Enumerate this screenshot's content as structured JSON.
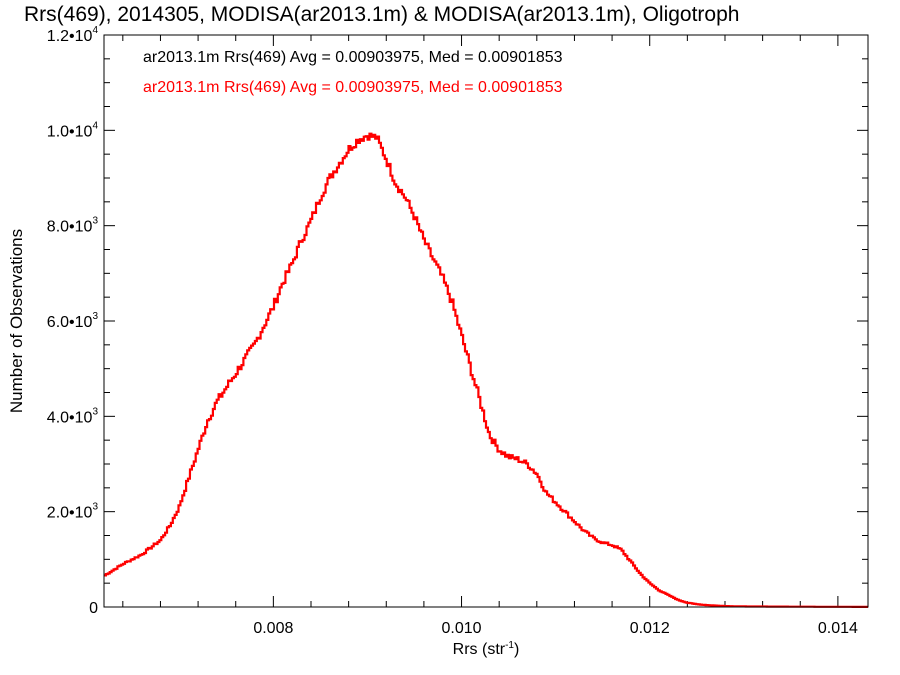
{
  "chart_data": {
    "type": "line",
    "line_style": "step",
    "title": "Rrs(469), 2014305, MODISA(ar2013.1m) & MODISA(ar2013.1m), Oligotroph",
    "xlabel": "Rrs (str",
    "xlabel_sup": "-1",
    "xlabel_suffix": ")",
    "ylabel": "Number of Observations",
    "xlim": [
      0.0062,
      0.01432
    ],
    "ylim": [
      0,
      12000
    ],
    "x_ticks": [
      {
        "value": 0.008,
        "label": "0.008"
      },
      {
        "value": 0.01,
        "label": "0.010"
      },
      {
        "value": 0.012,
        "label": "0.012"
      },
      {
        "value": 0.014,
        "label": "0.014"
      }
    ],
    "y_ticks": [
      {
        "value": 0,
        "label": "0",
        "exp": ""
      },
      {
        "value": 2000,
        "label": "2.0•10",
        "exp": "3"
      },
      {
        "value": 4000,
        "label": "4.0•10",
        "exp": "3"
      },
      {
        "value": 6000,
        "label": "6.0•10",
        "exp": "3"
      },
      {
        "value": 8000,
        "label": "8.0•10",
        "exp": "3"
      },
      {
        "value": 10000,
        "label": "1.0•10",
        "exp": "4"
      },
      {
        "value": 12000,
        "label": "1.2•10",
        "exp": "4"
      }
    ],
    "annotations": [
      {
        "text": "ar2013.1m Rrs(469) Avg = 0.00903975, Med = 0.00901853",
        "color": "#000000"
      },
      {
        "text": "ar2013.1m Rrs(469) Avg = 0.00903975, Med = 0.00901853",
        "color": "#ff0000"
      }
    ],
    "grid": false,
    "series": [
      {
        "color": "#ff0000",
        "x": [
          0.0062,
          0.0064,
          0.0066,
          0.0068,
          0.0069,
          0.007,
          0.0071,
          0.0072,
          0.0073,
          0.0074,
          0.0075,
          0.0076,
          0.0077,
          0.0078,
          0.0079,
          0.008,
          0.0081,
          0.0082,
          0.0083,
          0.0084,
          0.0085,
          0.0086,
          0.0087,
          0.0088,
          0.0089,
          0.009,
          0.0091,
          0.0092,
          0.0093,
          0.0094,
          0.0095,
          0.0096,
          0.0097,
          0.0098,
          0.0099,
          0.01,
          0.0101,
          0.0102,
          0.0103,
          0.0104,
          0.0105,
          0.0106,
          0.0107,
          0.0108,
          0.0109,
          0.011,
          0.0111,
          0.0112,
          0.0113,
          0.0114,
          0.0115,
          0.0116,
          0.0117,
          0.0118,
          0.0119,
          0.012,
          0.0121,
          0.0122,
          0.0123,
          0.0124,
          0.0125,
          0.0126,
          0.0127,
          0.0128,
          0.0129,
          0.013,
          0.0132,
          0.0134,
          0.0136,
          0.0138,
          0.014,
          0.0142,
          0.01432
        ],
        "y": [
          650,
          900,
          1100,
          1400,
          1700,
          2100,
          2700,
          3300,
          3900,
          4300,
          4600,
          4900,
          5200,
          5500,
          5900,
          6300,
          6800,
          7200,
          7700,
          8100,
          8600,
          9000,
          9300,
          9600,
          9800,
          9900,
          9850,
          9400,
          8900,
          8600,
          8200,
          7700,
          7300,
          6900,
          6400,
          5700,
          5000,
          4300,
          3600,
          3300,
          3150,
          3100,
          3000,
          2800,
          2400,
          2200,
          2000,
          1800,
          1600,
          1450,
          1350,
          1300,
          1200,
          950,
          700,
          500,
          350,
          250,
          150,
          90,
          60,
          40,
          30,
          20,
          15,
          12,
          10,
          8,
          6,
          5,
          4,
          3,
          3
        ]
      }
    ]
  }
}
